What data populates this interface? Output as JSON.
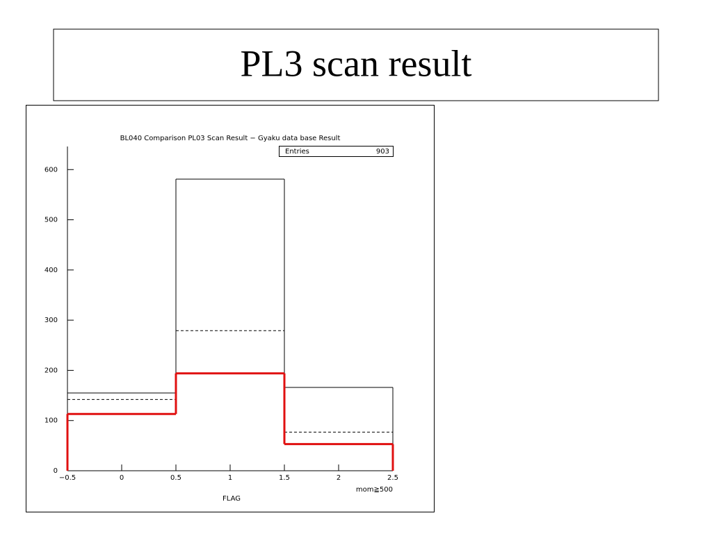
{
  "slide": {
    "title": "PL3 scan result"
  },
  "chart_data": {
    "type": "histogram",
    "title": "BL040 Comparison PL03 Scan Result − Gyaku data base Result",
    "x_label": "FLAG",
    "annotation": "mom≧500",
    "stats": {
      "label": "Entries",
      "value": 903
    },
    "bins": [
      -0.5,
      0.5,
      1.5,
      2.5
    ],
    "series": [
      {
        "color": "#000000",
        "style": "solid",
        "line_width": 1,
        "values": [
          155,
          581,
          166
        ]
      },
      {
        "color": "#000000",
        "style": "dashed",
        "line_width": 1,
        "values": [
          142,
          279,
          77
        ]
      },
      {
        "color": "#e01010",
        "style": "solid",
        "line_width": 3,
        "values": [
          113,
          194,
          53
        ]
      }
    ],
    "xlim": [
      -0.5,
      2.5
    ],
    "xticks": [
      {
        "value": -0.5,
        "label": "−0.5"
      },
      0,
      0.5,
      1,
      1.5,
      2,
      2.5
    ],
    "ylim": [
      0,
      646
    ],
    "yticks": [
      0,
      100,
      200,
      300,
      400,
      500,
      600
    ]
  }
}
